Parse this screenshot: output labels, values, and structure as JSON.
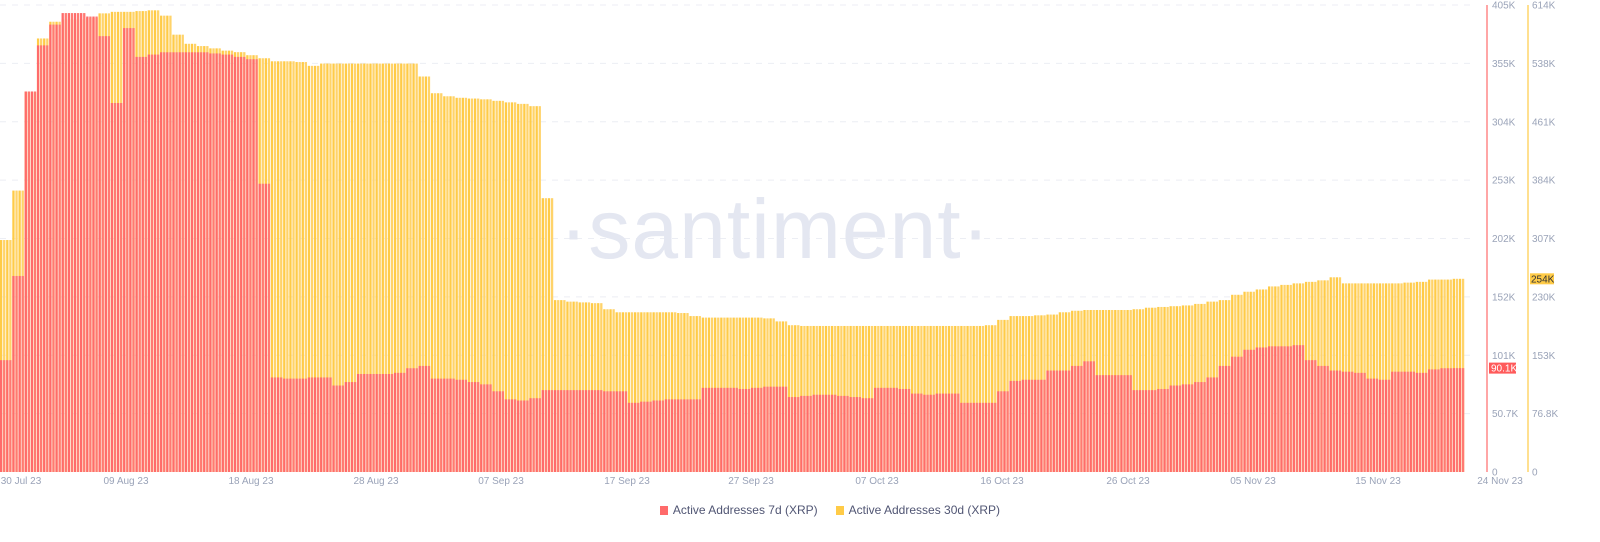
{
  "watermark": "·santiment·",
  "chart_data": {
    "type": "bar",
    "x_ticks": [
      "30 Jul 23",
      "09 Aug 23",
      "18 Aug 23",
      "28 Aug 23",
      "07 Sep 23",
      "17 Sep 23",
      "27 Sep 23",
      "07 Oct 23",
      "16 Oct 23",
      "26 Oct 23",
      "05 Nov 23",
      "15 Nov 23",
      "24 Nov 23"
    ],
    "y_left": {
      "ticks": [
        "405K",
        "355K",
        "304K",
        "253K",
        "202K",
        "152K",
        "101K",
        "50.7K",
        "0"
      ],
      "range": [
        0,
        405
      ],
      "color": "#ff6b6b",
      "current_label": "90.1K"
    },
    "y_right": {
      "ticks": [
        "614K",
        "538K",
        "461K",
        "384K",
        "307K",
        "230K",
        "153K",
        "76.8K",
        "0"
      ],
      "range": [
        0,
        614
      ],
      "color": "#ffcb47",
      "current_label": "254K"
    },
    "grid": true,
    "legend_placement": "bottom",
    "units": "thousands",
    "series": [
      {
        "name": "Active Addresses 7d (XRP)",
        "axis": "left",
        "color": "#ff6b6b",
        "values": [
          97,
          170,
          330,
          370,
          388,
          398,
          398,
          395,
          378,
          320,
          385,
          360,
          362,
          364,
          364,
          364,
          364,
          363,
          362,
          360,
          358,
          250,
          82,
          81,
          81,
          82,
          82,
          75,
          78,
          85,
          85,
          85,
          86,
          90,
          92,
          81,
          81,
          80,
          78,
          76,
          70,
          63,
          62,
          64,
          71,
          71,
          71,
          71,
          71,
          70,
          70,
          60,
          61,
          62,
          63,
          63,
          63,
          73,
          73,
          73,
          72,
          73,
          74,
          74,
          65,
          66,
          67,
          67,
          66,
          65,
          64,
          73,
          73,
          72,
          68,
          67,
          68,
          68,
          60,
          60,
          60,
          70,
          79,
          80,
          80,
          88,
          88,
          92,
          96,
          84,
          84,
          84,
          71,
          71,
          72,
          75,
          76,
          78,
          82,
          92,
          100,
          106,
          108,
          109,
          109,
          110,
          97,
          92,
          88,
          87,
          86,
          81,
          80,
          87,
          87,
          86,
          89,
          90,
          90.1
        ]
      },
      {
        "name": "Active Addresses 30d (XRP)",
        "axis": "right",
        "color": "#ffcb47",
        "values": [
          305,
          370,
          500,
          570,
          592,
          595,
          595,
          597,
          603,
          605,
          605,
          606,
          607,
          600,
          575,
          563,
          560,
          557,
          554,
          552,
          548,
          544,
          540,
          540,
          539,
          534,
          537,
          537,
          537,
          537,
          537,
          537,
          537,
          537,
          520,
          498,
          494,
          492,
          491,
          490,
          488,
          486,
          484,
          481,
          360,
          226,
          224,
          223,
          222,
          214,
          210,
          210,
          210,
          210,
          210,
          209,
          205,
          203,
          203,
          203,
          203,
          203,
          202,
          198,
          193,
          192,
          192,
          192,
          192,
          192,
          192,
          192,
          192,
          192,
          192,
          192,
          192,
          192,
          192,
          192,
          193,
          200,
          205,
          205,
          206,
          207,
          210,
          212,
          213,
          213,
          213,
          213,
          214,
          216,
          217,
          218,
          219,
          221,
          224,
          226,
          233,
          237,
          240,
          244,
          246,
          248,
          250,
          252,
          256,
          248,
          248,
          248,
          248,
          248,
          249,
          250,
          253,
          253,
          254
        ]
      }
    ]
  }
}
